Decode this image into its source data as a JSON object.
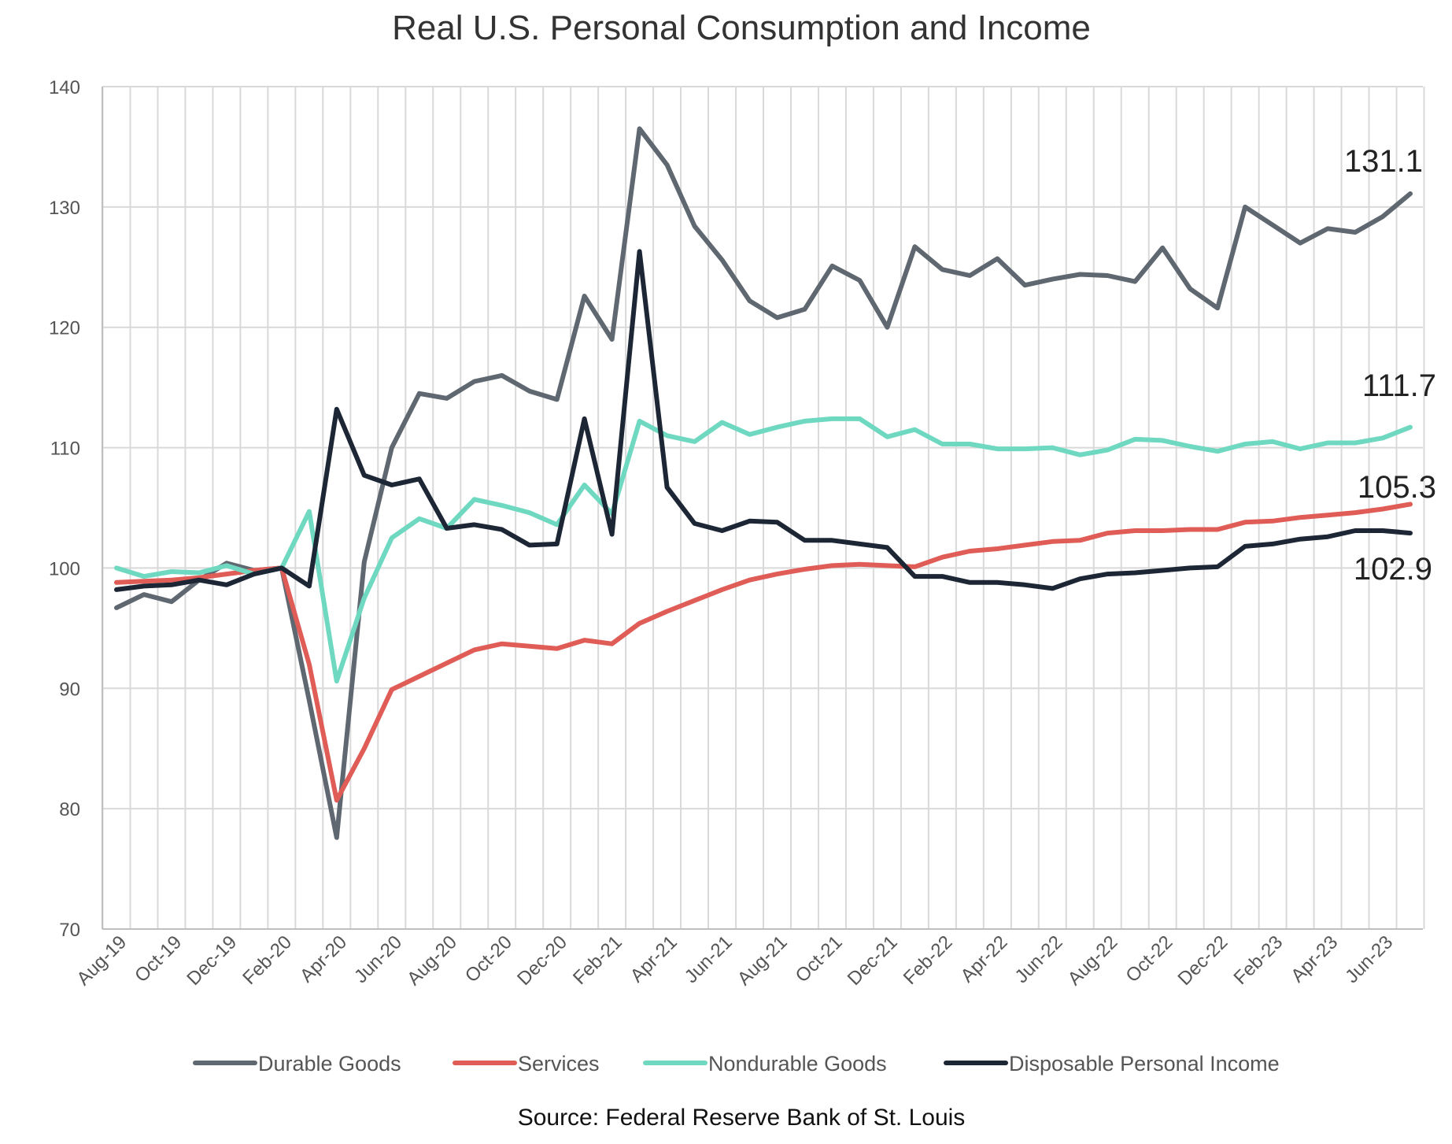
{
  "chart_data": {
    "type": "line",
    "title": "Real U.S. Personal Consumption and Income",
    "source": "Source: Federal Reserve Bank of St. Louis",
    "xlabel": "",
    "ylabel": "",
    "ylim": [
      70,
      140
    ],
    "y_ticks": [
      70,
      80,
      90,
      100,
      110,
      120,
      130,
      140
    ],
    "grid": true,
    "legend_position": "bottom",
    "categories": [
      "Aug-19",
      "Sep-19",
      "Oct-19",
      "Nov-19",
      "Dec-19",
      "Jan-20",
      "Feb-20",
      "Mar-20",
      "Apr-20",
      "May-20",
      "Jun-20",
      "Jul-20",
      "Aug-20",
      "Sep-20",
      "Oct-20",
      "Nov-20",
      "Dec-20",
      "Jan-21",
      "Feb-21",
      "Mar-21",
      "Apr-21",
      "May-21",
      "Jun-21",
      "Jul-21",
      "Aug-21",
      "Sep-21",
      "Oct-21",
      "Nov-21",
      "Dec-21",
      "Jan-22",
      "Feb-22",
      "Mar-22",
      "Apr-22",
      "May-22",
      "Jun-22",
      "Jul-22",
      "Aug-22",
      "Sep-22",
      "Oct-22",
      "Nov-22",
      "Dec-22",
      "Jan-23",
      "Feb-23",
      "Mar-23",
      "Apr-23",
      "May-23",
      "Jun-23",
      "Jul-23"
    ],
    "tick_labels": [
      "Aug-19",
      "Oct-19",
      "Dec-19",
      "Feb-20",
      "Apr-20",
      "Jun-20",
      "Aug-20",
      "Oct-20",
      "Dec-20",
      "Feb-21",
      "Apr-21",
      "Jun-21",
      "Aug-21",
      "Oct-21",
      "Dec-21",
      "Feb-22",
      "Apr-22",
      "Jun-22",
      "Aug-22",
      "Oct-22",
      "Dec-22",
      "Feb-23",
      "Apr-23",
      "Jun-23"
    ],
    "series": [
      {
        "name": "Durable Goods",
        "color": "#5f6770",
        "values": [
          96.7,
          97.8,
          97.2,
          99.0,
          100.4,
          99.8,
          100.0,
          89.0,
          77.6,
          100.5,
          110.0,
          114.5,
          114.1,
          115.5,
          116.0,
          114.7,
          114.0,
          122.6,
          119.0,
          136.5,
          133.5,
          128.4,
          125.6,
          122.2,
          120.8,
          121.5,
          125.1,
          123.9,
          120.0,
          126.7,
          124.8,
          124.3,
          125.7,
          123.5,
          124.0,
          124.4,
          124.3,
          123.8,
          126.6,
          123.2,
          121.6,
          130.0,
          128.5,
          127.0,
          128.2,
          127.9,
          129.2,
          131.1
        ],
        "end_label": "131.1"
      },
      {
        "name": "Services",
        "color": "#e05c56",
        "values": [
          98.8,
          98.9,
          99.0,
          99.2,
          99.5,
          99.8,
          100.0,
          92.0,
          80.7,
          85.0,
          89.9,
          91.0,
          92.1,
          93.2,
          93.7,
          93.5,
          93.3,
          94.0,
          93.7,
          95.4,
          96.4,
          97.3,
          98.2,
          99.0,
          99.5,
          99.9,
          100.2,
          100.3,
          100.2,
          100.1,
          100.9,
          101.4,
          101.6,
          101.9,
          102.2,
          102.3,
          102.9,
          103.1,
          103.1,
          103.2,
          103.2,
          103.8,
          103.9,
          104.2,
          104.4,
          104.6,
          104.9,
          105.3
        ],
        "end_label": "105.3"
      },
      {
        "name": "Nondurable Goods",
        "color": "#6fd8c0",
        "values": [
          100.0,
          99.3,
          99.7,
          99.6,
          100.2,
          99.5,
          100.0,
          104.7,
          90.6,
          97.5,
          102.5,
          104.1,
          103.3,
          105.7,
          105.2,
          104.6,
          103.6,
          106.9,
          104.5,
          112.2,
          111.0,
          110.5,
          112.1,
          111.1,
          111.7,
          112.2,
          112.4,
          112.4,
          110.9,
          111.5,
          110.3,
          110.3,
          109.9,
          109.9,
          110.0,
          109.4,
          109.8,
          110.7,
          110.6,
          110.1,
          109.7,
          110.3,
          110.5,
          109.9,
          110.4,
          110.4,
          110.8,
          111.7
        ],
        "end_label": "111.7"
      },
      {
        "name": "Disposable Personal Income",
        "color": "#1c2635",
        "values": [
          98.2,
          98.5,
          98.6,
          99.0,
          98.6,
          99.5,
          100.0,
          98.5,
          113.2,
          107.7,
          106.9,
          107.4,
          103.3,
          103.6,
          103.2,
          101.9,
          102.0,
          112.4,
          102.8,
          126.3,
          106.7,
          103.7,
          103.1,
          103.9,
          103.8,
          102.3,
          102.3,
          102.0,
          101.7,
          99.3,
          99.3,
          98.8,
          98.8,
          98.6,
          98.3,
          99.1,
          99.5,
          99.6,
          99.8,
          100.0,
          100.1,
          101.8,
          102.0,
          102.4,
          102.6,
          103.1,
          103.1,
          102.9
        ],
        "end_label": "102.9"
      }
    ]
  }
}
